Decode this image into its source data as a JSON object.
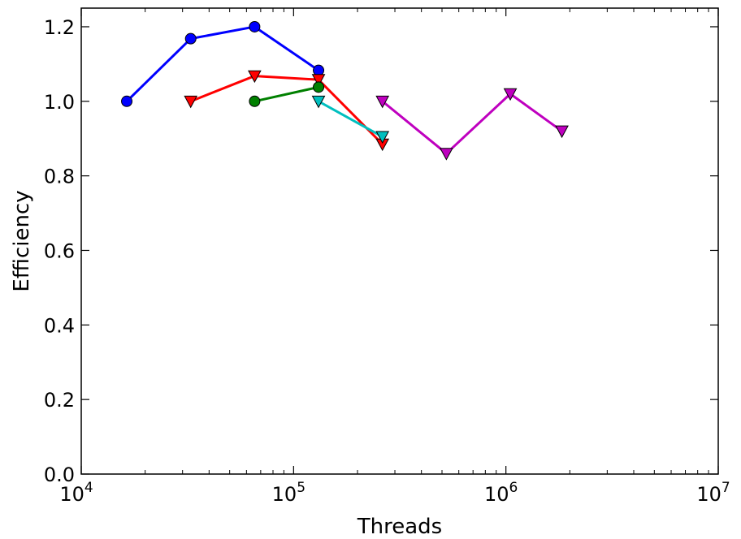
{
  "chart_data": {
    "type": "line",
    "title": "",
    "xlabel": "Threads",
    "ylabel": "Efficiency",
    "xscale": "log",
    "xlim": [
      10000,
      10000000
    ],
    "ylim": [
      0.0,
      1.25
    ],
    "grid": false,
    "legend": "none",
    "x_ticks": [
      {
        "value": 10000,
        "base": "10",
        "exp": "4"
      },
      {
        "value": 100000,
        "base": "10",
        "exp": "5"
      },
      {
        "value": 1000000,
        "base": "10",
        "exp": "6"
      },
      {
        "value": 10000000,
        "base": "10",
        "exp": "7"
      }
    ],
    "y_ticks": [
      {
        "value": 0.0,
        "label": "0.0"
      },
      {
        "value": 0.2,
        "label": "0.2"
      },
      {
        "value": 0.4,
        "label": "0.4"
      },
      {
        "value": 0.6,
        "label": "0.6"
      },
      {
        "value": 0.8,
        "label": "0.8"
      },
      {
        "value": 1.0,
        "label": "1.0"
      },
      {
        "value": 1.2,
        "label": "1.2"
      }
    ],
    "series": [
      {
        "color": "#0000ff",
        "marker": "circle",
        "x": [
          16384,
          32768,
          65536,
          131072
        ],
        "y": [
          1.0,
          1.168,
          1.2,
          1.083
        ]
      },
      {
        "color": "#ff0000",
        "marker": "triangle-down",
        "x": [
          32768,
          65536,
          131072,
          262144
        ],
        "y": [
          1.0,
          1.068,
          1.058,
          0.885
        ]
      },
      {
        "color": "#008000",
        "marker": "circle",
        "x": [
          65536,
          131072
        ],
        "y": [
          1.0,
          1.038
        ]
      },
      {
        "color": "#00bfbf",
        "marker": "triangle-down",
        "x": [
          131072,
          262144
        ],
        "y": [
          1.0,
          0.905
        ]
      },
      {
        "color": "#bf00bf",
        "marker": "triangle-down",
        "x": [
          262144,
          524288,
          1048576,
          1835008
        ],
        "y": [
          1.0,
          0.86,
          1.02,
          0.92
        ]
      }
    ]
  }
}
